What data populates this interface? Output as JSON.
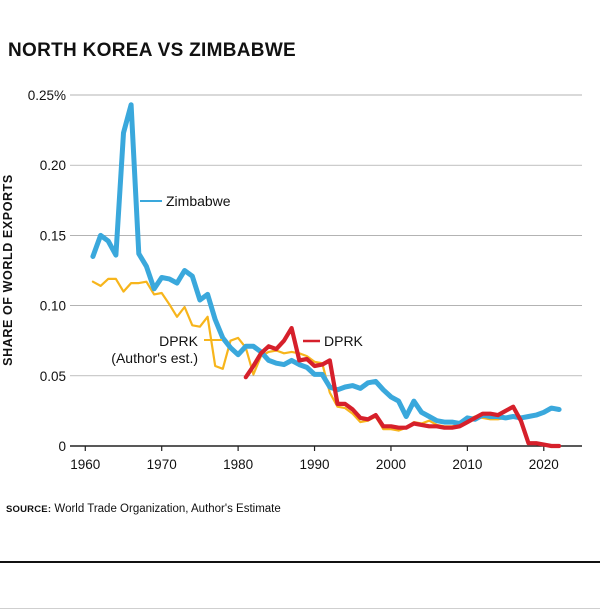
{
  "title": "NORTH KOREA VS ZIMBABWE",
  "source": {
    "label": "SOURCE:",
    "text": "World Trade Organization, Author's Estimate"
  },
  "colors": {
    "zimbabwe": "#3aa8dc",
    "dprk_est": "#f7b51c",
    "dprk": "#d6202b",
    "axis": "#222222",
    "grid": "#9a9a9a"
  },
  "chart_data": {
    "type": "line",
    "title": "NORTH KOREA VS ZIMBABWE",
    "xlabel": "",
    "ylabel": "SHARE OF WORLD EXPORTS",
    "xlim": [
      1958,
      2025
    ],
    "ylim": [
      0,
      0.25
    ],
    "x_ticks": [
      1960,
      1970,
      1980,
      1990,
      2000,
      2010,
      2020
    ],
    "x_tick_labels": [
      "1960",
      "1970",
      "1980",
      "1990",
      "2000",
      "2010",
      "2020"
    ],
    "y_ticks": [
      0,
      0.05,
      0.1,
      0.15,
      0.2,
      0.25
    ],
    "y_tick_labels": [
      "0",
      "0.05",
      "0.10",
      "0.15",
      "0.20",
      "0.25%"
    ],
    "grid": "horizontal",
    "series": [
      {
        "name": "Zimbabwe",
        "label_lines": [
          "Zimbabwe"
        ],
        "color": "#3aa8dc",
        "x": [
          1961,
          1962,
          1963,
          1964,
          1965,
          1966,
          1967,
          1968,
          1969,
          1970,
          1971,
          1972,
          1973,
          1974,
          1975,
          1976,
          1977,
          1978,
          1979,
          1980,
          1981,
          1982,
          1983,
          1984,
          1985,
          1986,
          1987,
          1988,
          1989,
          1990,
          1991,
          1992,
          1993,
          1994,
          1995,
          1996,
          1997,
          1998,
          1999,
          2000,
          2001,
          2002,
          2003,
          2004,
          2005,
          2006,
          2007,
          2008,
          2009,
          2010,
          2011,
          2012,
          2013,
          2014,
          2015,
          2016,
          2017,
          2018,
          2019,
          2020,
          2021,
          2022
        ],
        "values": [
          0.135,
          0.15,
          0.146,
          0.136,
          0.223,
          0.243,
          0.137,
          0.128,
          0.112,
          0.12,
          0.119,
          0.116,
          0.125,
          0.121,
          0.104,
          0.108,
          0.09,
          0.077,
          0.07,
          0.065,
          0.071,
          0.071,
          0.067,
          0.061,
          0.059,
          0.058,
          0.061,
          0.058,
          0.056,
          0.051,
          0.051,
          0.042,
          0.04,
          0.042,
          0.043,
          0.041,
          0.045,
          0.046,
          0.04,
          0.035,
          0.032,
          0.021,
          0.032,
          0.024,
          0.021,
          0.018,
          0.017,
          0.017,
          0.016,
          0.02,
          0.019,
          0.022,
          0.021,
          0.021,
          0.02,
          0.021,
          0.02,
          0.021,
          0.022,
          0.024,
          0.027,
          0.026
        ]
      },
      {
        "name": "DPRK (Author's est.)",
        "label_lines": [
          "DPRK",
          "(Author's est.)"
        ],
        "color": "#f7b51c",
        "x": [
          1961,
          1962,
          1963,
          1964,
          1965,
          1966,
          1967,
          1968,
          1969,
          1970,
          1971,
          1972,
          1973,
          1974,
          1975,
          1976,
          1977,
          1978,
          1979,
          1980,
          1981,
          1982,
          1983,
          1984,
          1985,
          1986,
          1987,
          1988,
          1989,
          1990,
          1991,
          1992,
          1993,
          1994,
          1995,
          1996,
          1997,
          1998,
          1999,
          2000,
          2001,
          2002,
          2003,
          2004,
          2005,
          2006,
          2007,
          2008,
          2009,
          2010,
          2011,
          2012,
          2013,
          2014,
          2015
        ],
        "values": [
          0.117,
          0.114,
          0.119,
          0.119,
          0.11,
          0.116,
          0.116,
          0.117,
          0.108,
          0.109,
          0.101,
          0.092,
          0.099,
          0.086,
          0.085,
          0.092,
          0.057,
          0.055,
          0.075,
          0.077,
          0.07,
          0.051,
          0.064,
          0.067,
          0.068,
          0.066,
          0.067,
          0.066,
          0.064,
          0.06,
          0.059,
          0.038,
          0.028,
          0.027,
          0.023,
          0.017,
          0.018,
          0.021,
          0.012,
          0.012,
          0.011,
          0.013,
          0.017,
          0.016,
          0.018,
          0.015,
          0.014,
          0.014,
          0.015,
          0.019,
          0.021,
          0.02,
          0.019,
          0.019,
          0.02
        ]
      },
      {
        "name": "DPRK",
        "label_lines": [
          "DPRK"
        ],
        "color": "#d6202b",
        "x": [
          1981,
          1982,
          1983,
          1984,
          1985,
          1986,
          1987,
          1988,
          1989,
          1990,
          1991,
          1992,
          1993,
          1994,
          1995,
          1996,
          1997,
          1998,
          1999,
          2000,
          2001,
          2002,
          2003,
          2004,
          2005,
          2006,
          2007,
          2008,
          2009,
          2010,
          2011,
          2012,
          2013,
          2014,
          2015,
          2016,
          2017,
          2018,
          2019,
          2020,
          2021,
          2022
        ],
        "values": [
          0.049,
          0.057,
          0.066,
          0.071,
          0.069,
          0.075,
          0.084,
          0.061,
          0.062,
          0.057,
          0.058,
          0.061,
          0.03,
          0.03,
          0.026,
          0.02,
          0.019,
          0.022,
          0.014,
          0.014,
          0.013,
          0.013,
          0.016,
          0.015,
          0.014,
          0.014,
          0.013,
          0.013,
          0.014,
          0.017,
          0.02,
          0.023,
          0.023,
          0.022,
          0.025,
          0.028,
          0.018,
          0.002,
          0.002,
          0.001,
          0.0,
          0.0
        ]
      }
    ]
  }
}
